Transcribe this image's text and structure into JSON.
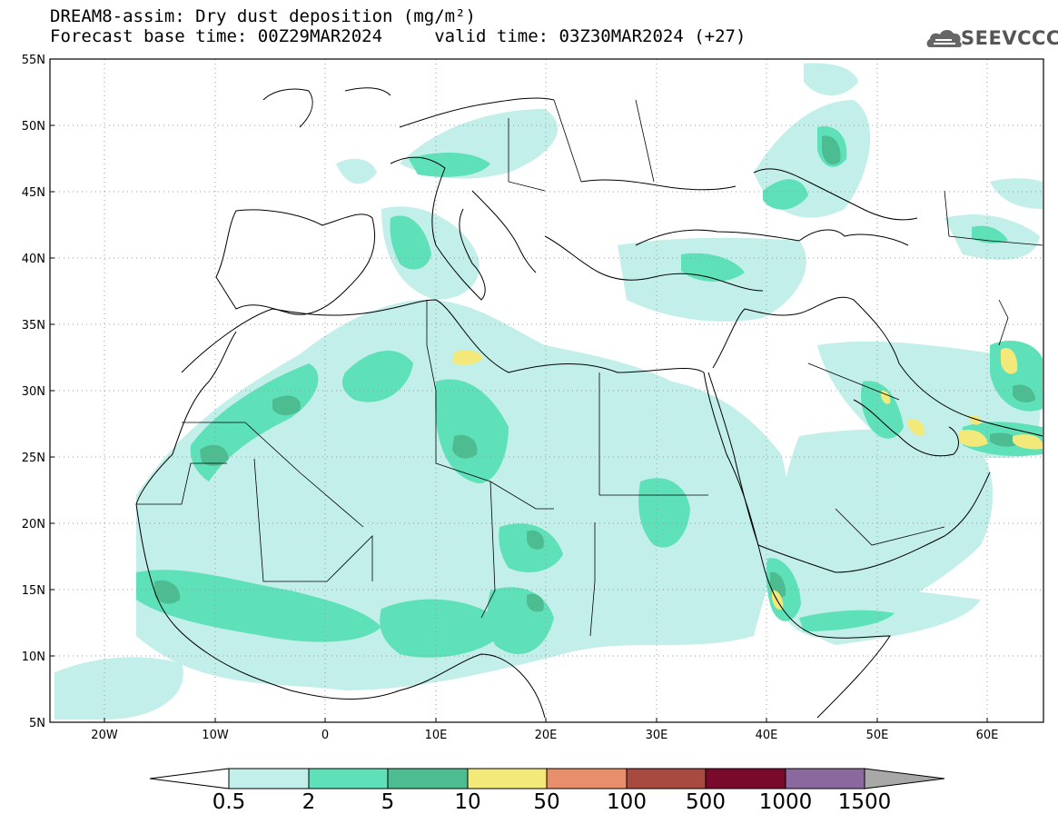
{
  "title": {
    "line1": "DREAM8-assim: Dry dust deposition (mg/m²)",
    "line2": "Forecast base time: 00Z29MAR2024     valid time: 03Z30MAR2024 (+27)"
  },
  "logo": {
    "text": "SEEVCCC",
    "icon": "cloud-logo-icon"
  },
  "map": {
    "lon_range": [
      -25,
      65
    ],
    "lat_range": [
      5,
      55
    ],
    "lat_ticks": [
      "55N",
      "50N",
      "45N",
      "40N",
      "35N",
      "30N",
      "25N",
      "20N",
      "15N",
      "10N",
      "5N"
    ],
    "lon_ticks": [
      "20W",
      "10W",
      "0",
      "10E",
      "20E",
      "30E",
      "40E",
      "50E",
      "60E"
    ],
    "colors": {
      "land_bg": "#ffffff",
      "coast": "#000000",
      "grid": "#999999"
    }
  },
  "colorbar": {
    "labels": [
      "0.5",
      "2",
      "5",
      "10",
      "50",
      "100",
      "500",
      "1000",
      "1500"
    ],
    "colors": [
      "#c2efe9",
      "#5ee0b8",
      "#4dbc90",
      "#f3e87a",
      "#e78e6a",
      "#a84a3f",
      "#7a0a2c",
      "#8a6a9e",
      "#a8a8a8"
    ]
  }
}
